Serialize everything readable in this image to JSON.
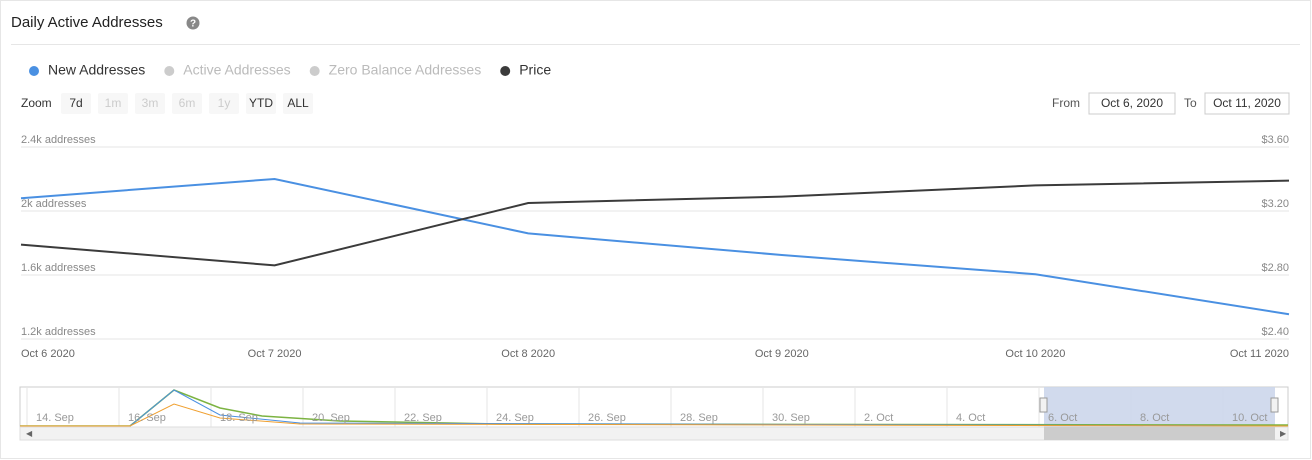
{
  "chart_data": {
    "type": "line",
    "title": "Daily Active Addresses",
    "categories": [
      "Oct 6 2020",
      "Oct 7 2020",
      "Oct 8 2020",
      "Oct 9 2020",
      "Oct 10 2020",
      "Oct 11 2020"
    ],
    "series": [
      {
        "name": "New Addresses",
        "color": "#4a90e2",
        "values": [
          2080,
          2200,
          1860,
          1725,
          1605,
          1355
        ]
      },
      {
        "name": "Price",
        "color": "#3b3b3b",
        "axis": "y2",
        "values": [
          2.99,
          2.86,
          3.25,
          3.29,
          3.36,
          3.39
        ]
      }
    ],
    "hidden_series": [
      "Active Addresses",
      "Zero Balance Addresses"
    ],
    "ylim": [
      1200,
      2400
    ],
    "yticks": [
      {
        "value": 1200,
        "label": "1.2k addresses"
      },
      {
        "value": 1600,
        "label": "1.6k addresses"
      },
      {
        "value": 2000,
        "label": "2k addresses"
      },
      {
        "value": 2400,
        "label": "2.4k addresses"
      }
    ],
    "y2lim": [
      2.4,
      3.6
    ],
    "y2ticks": [
      {
        "value": 2.4,
        "label": "$2.40"
      },
      {
        "value": 2.8,
        "label": "$2.80"
      },
      {
        "value": 3.2,
        "label": "$3.20"
      },
      {
        "value": 3.6,
        "label": "$3.60"
      }
    ],
    "grid": true
  },
  "ui": {
    "zoom_label": "Zoom",
    "zoom_buttons": [
      "7d",
      "1m",
      "3m",
      "6m",
      "1y",
      "YTD",
      "ALL"
    ],
    "from_label": "From",
    "from_value": "Oct 6, 2020",
    "to_label": "To",
    "to_value": "Oct 11, 2020",
    "navigator_labels": [
      "14. Sep",
      "16. Sep",
      "18. Sep",
      "20. Sep",
      "22. Sep",
      "24. Sep",
      "26. Sep",
      "28. Sep",
      "30. Sep",
      "2. Oct",
      "4. Oct",
      "6. Oct",
      "8. Oct",
      "10. Oct"
    ]
  }
}
